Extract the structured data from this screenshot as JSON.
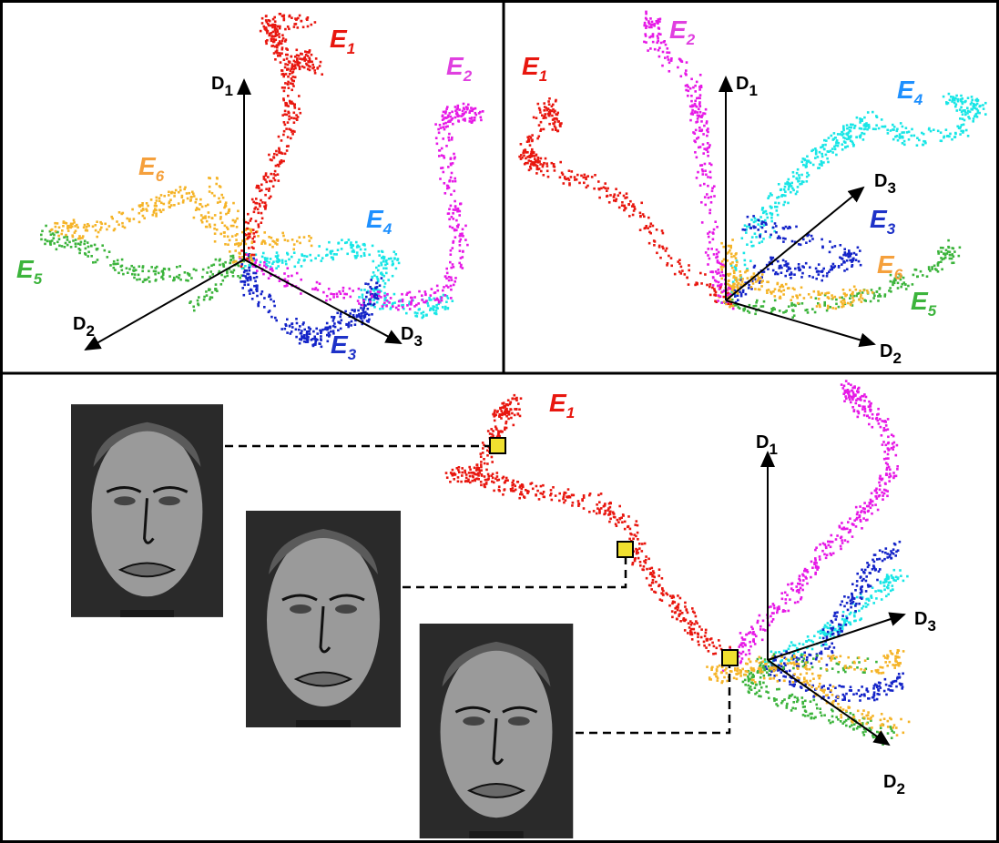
{
  "panels": [
    {
      "axes": [
        {
          "letter": "D",
          "sub": "1"
        },
        {
          "letter": "D",
          "sub": "2"
        },
        {
          "letter": "D",
          "sub": "3"
        }
      ],
      "labels": [
        {
          "letter": "E",
          "sub": "1"
        },
        {
          "letter": "E",
          "sub": "2"
        },
        {
          "letter": "E",
          "sub": "6"
        },
        {
          "letter": "E",
          "sub": "4"
        },
        {
          "letter": "E",
          "sub": "5"
        },
        {
          "letter": "E",
          "sub": "3"
        }
      ]
    },
    {
      "axes": [
        {
          "letter": "D",
          "sub": "1"
        },
        {
          "letter": "D",
          "sub": "3"
        },
        {
          "letter": "D",
          "sub": "2"
        }
      ],
      "labels": [
        {
          "letter": "E",
          "sub": "2"
        },
        {
          "letter": "E",
          "sub": "1"
        },
        {
          "letter": "E",
          "sub": "4"
        },
        {
          "letter": "E",
          "sub": "3"
        },
        {
          "letter": "E",
          "sub": "6"
        },
        {
          "letter": "E",
          "sub": "5"
        }
      ]
    },
    {
      "axes": [
        {
          "letter": "D",
          "sub": "1"
        },
        {
          "letter": "D",
          "sub": "3"
        },
        {
          "letter": "D",
          "sub": "2"
        }
      ],
      "labels": [
        {
          "letter": "E",
          "sub": "1"
        }
      ]
    }
  ]
}
